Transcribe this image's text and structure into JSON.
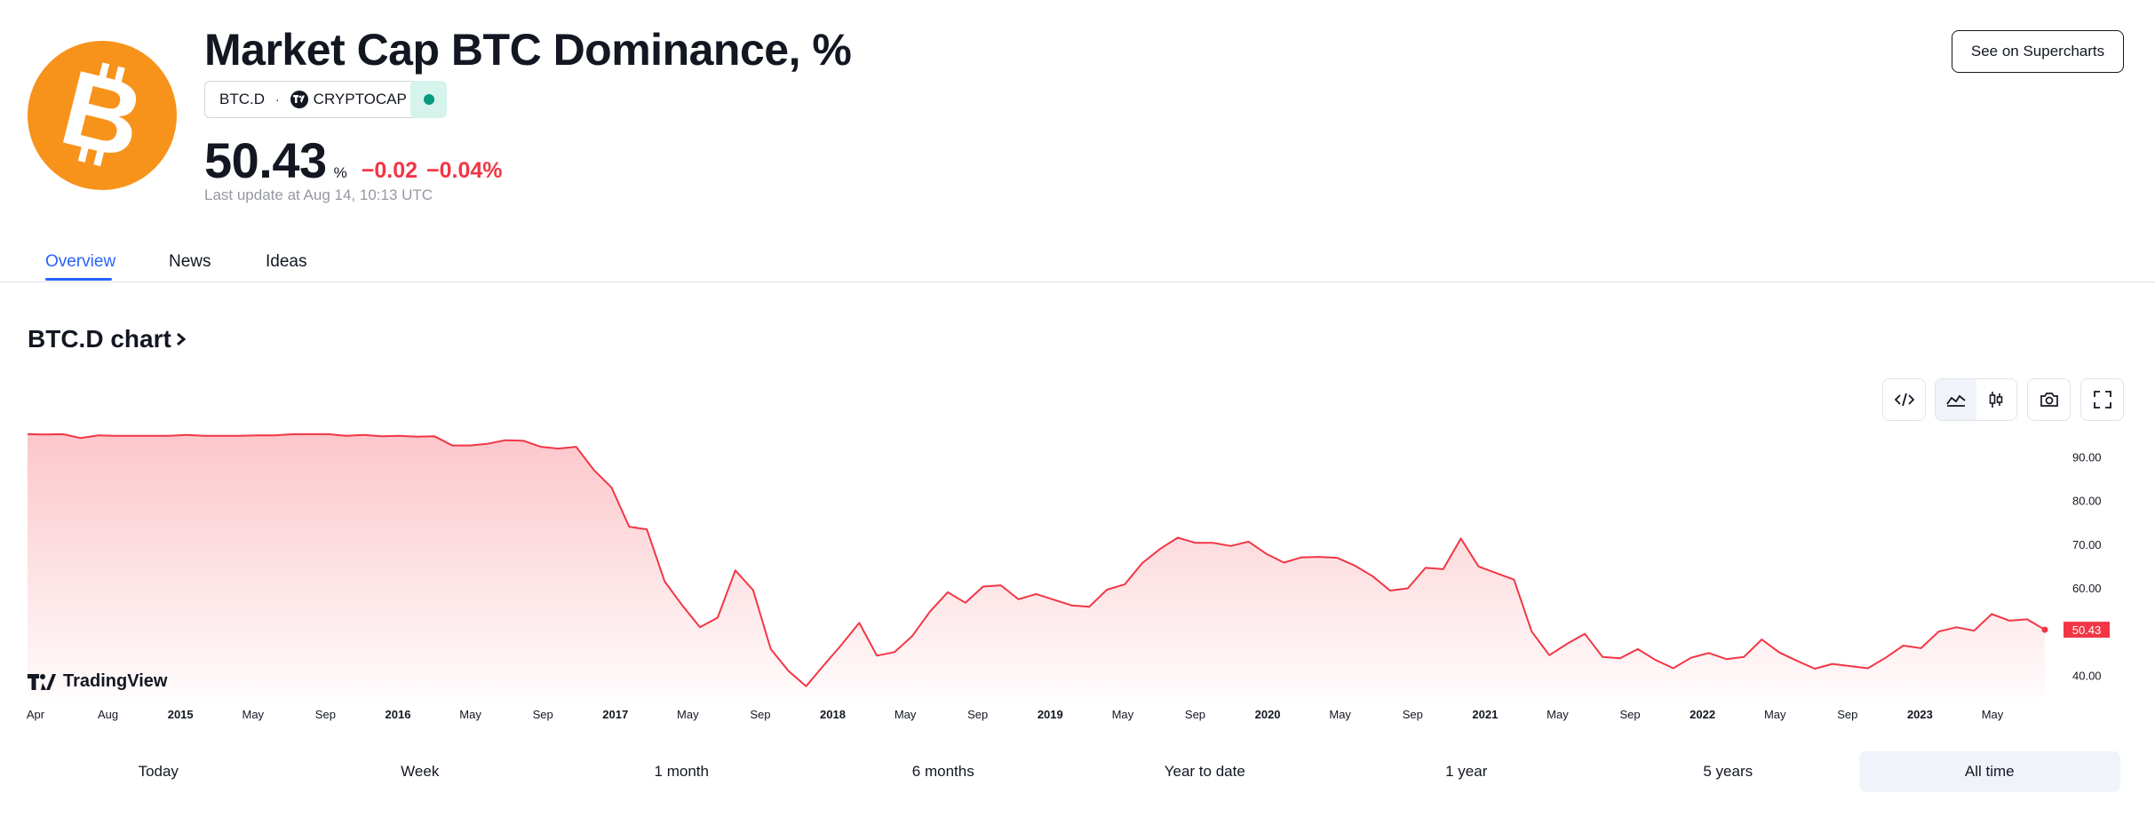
{
  "header": {
    "title": "Market Cap BTC Dominance, %",
    "symbol": "BTC.D",
    "separator": "·",
    "exchange": "CRYPTOCAP",
    "price": "50.43",
    "unit": "%",
    "change": "−0.02",
    "change_pct": "−0.04%",
    "last_update": "Last update at Aug 14, 10:13 UTC",
    "supercharts_label": "See on Supercharts",
    "logo_icon": "bitcoin-icon",
    "status_icon": "market-open-dot-icon"
  },
  "tabs": [
    {
      "label": "Overview",
      "active": true
    },
    {
      "label": "News",
      "active": false
    },
    {
      "label": "Ideas",
      "active": false
    }
  ],
  "chart_section": {
    "heading": "BTC.D chart",
    "heading_icon": "chevron-right-icon",
    "tools": [
      "embed-code-icon",
      "area-chart-icon",
      "candles-icon",
      "camera-icon",
      "fullscreen-icon"
    ],
    "brand": "TradingView"
  },
  "ranges": [
    {
      "label": "Today",
      "active": false
    },
    {
      "label": "Week",
      "active": false
    },
    {
      "label": "1 month",
      "active": false
    },
    {
      "label": "6 months",
      "active": false
    },
    {
      "label": "Year to date",
      "active": false
    },
    {
      "label": "1 year",
      "active": false
    },
    {
      "label": "5 years",
      "active": false
    },
    {
      "label": "All time",
      "active": true
    }
  ],
  "colors": {
    "line": "#F23645",
    "positive": "#089981",
    "accent": "#2962FF",
    "bitcoin": "#F7931A"
  },
  "chart_data": {
    "type": "area",
    "x_start": "2014-04",
    "x_step": "month",
    "values": [
      95.2,
      95.1,
      95.2,
      94.3,
      94.9,
      94.8,
      94.8,
      94.8,
      94.8,
      95.0,
      94.8,
      94.8,
      94.8,
      94.9,
      94.9,
      95.2,
      95.2,
      95.2,
      94.8,
      95.0,
      94.7,
      94.8,
      94.6,
      94.7,
      92.6,
      92.6,
      93.0,
      93.8,
      93.7,
      92.3,
      91.9,
      92.3,
      87.0,
      83.0,
      74.0,
      73.4,
      61.5,
      56.0,
      51.0,
      53.2,
      64.0,
      59.5,
      46.0,
      41.0,
      37.5,
      42.3,
      47.0,
      52.0,
      44.5,
      45.3,
      49.0,
      54.6,
      59.0,
      56.6,
      60.3,
      60.6,
      57.4,
      58.6,
      57.3,
      56.0,
      55.7,
      59.6,
      60.8,
      65.7,
      68.9,
      71.5,
      70.3,
      70.3,
      69.6,
      70.6,
      67.8,
      65.8,
      67.0,
      67.1,
      66.9,
      65.1,
      62.7,
      59.4,
      59.9,
      64.6,
      64.3,
      71.3,
      64.9,
      63.4,
      61.9,
      50.0,
      44.6,
      47.2,
      49.5,
      44.2,
      43.9,
      46.0,
      43.5,
      41.6,
      44.0,
      45.1,
      43.7,
      44.2,
      48.2,
      45.2,
      43.3,
      41.5,
      42.6,
      42.1,
      41.6,
      44.0,
      46.8,
      46.2,
      50.0,
      51.0,
      50.2,
      54.0,
      52.5,
      52.8,
      50.43
    ],
    "x_tick_labels": [
      "Apr",
      "Aug",
      "2015",
      "May",
      "Sep",
      "2016",
      "May",
      "Sep",
      "2017",
      "May",
      "Sep",
      "2018",
      "May",
      "Sep",
      "2019",
      "May",
      "Sep",
      "2020",
      "May",
      "Sep",
      "2021",
      "May",
      "Sep",
      "2022",
      "May",
      "Sep",
      "2023",
      "May"
    ],
    "bold_ticks": [
      "2015",
      "2016",
      "2017",
      "2018",
      "2019",
      "2020",
      "2021",
      "2022",
      "2023"
    ],
    "y_ticks": [
      "90.00",
      "80.00",
      "70.00",
      "60.00",
      "50.43",
      "40.00"
    ],
    "ylim": [
      35,
      97
    ],
    "last_value_label": "50.43",
    "grid": false
  }
}
